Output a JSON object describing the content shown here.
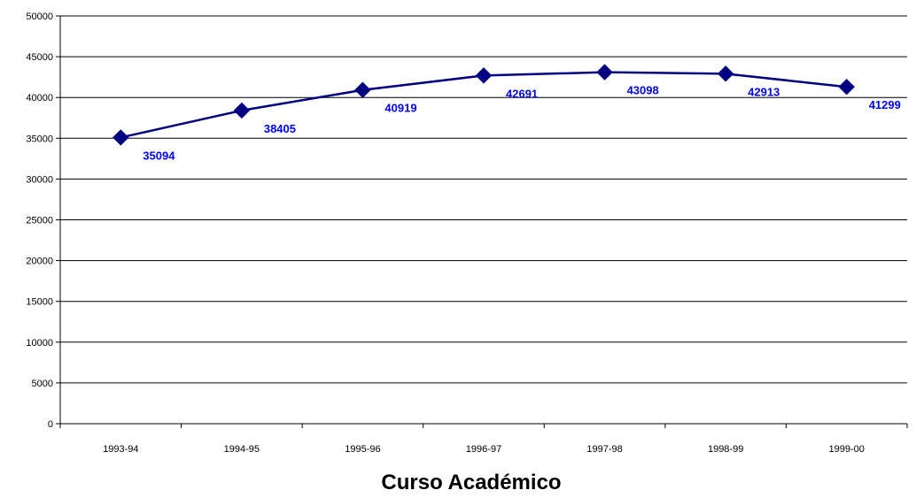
{
  "chart_data": {
    "type": "line",
    "categories": [
      "1993-94",
      "1994-95",
      "1995-96",
      "1996-97",
      "1997-98",
      "1998-99",
      "1999-00"
    ],
    "series": [
      {
        "values": [
          35094,
          38405,
          40919,
          42691,
          43098,
          42913,
          41299
        ]
      }
    ],
    "data_labels": [
      "35094",
      "38405",
      "40919",
      "42691",
      "43098",
      "42913",
      "41299"
    ],
    "title": "",
    "xlabel": "Curso Académico",
    "ylabel": "",
    "ylim": [
      0,
      50000
    ],
    "yticks": [
      "0",
      "5000",
      "10000",
      "15000",
      "20000",
      "25000",
      "30000",
      "35000",
      "40000",
      "45000",
      "50000"
    ],
    "grid": "horizontal",
    "legend": "none",
    "marker": "diamond",
    "colors": {
      "line": "#000080",
      "marker": "#000080",
      "label": "#0000FF",
      "grid": "#000000"
    }
  }
}
